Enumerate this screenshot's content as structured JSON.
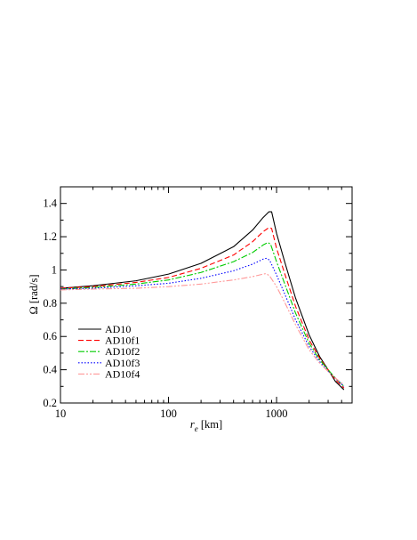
{
  "chart_data": {
    "type": "line",
    "xlabel": "r",
    "xlabel_sub": "e",
    "xlabel_unit": " [km]",
    "ylabel": "Ω [rad/s]",
    "xscale": "log",
    "xlim": [
      10,
      5000
    ],
    "ylim": [
      0.2,
      1.5
    ],
    "x_ticks": [
      10,
      100,
      1000
    ],
    "x_tick_labels": [
      "10",
      "100",
      "1000"
    ],
    "y_ticks": [
      0.2,
      0.4,
      0.6,
      0.8,
      1.0,
      1.2,
      1.4
    ],
    "y_tick_labels": [
      "0.2",
      "0.4",
      "0.6",
      "0.8",
      "1",
      "1.2",
      "1.4"
    ],
    "grid": false,
    "legend_position": "lower-left",
    "series": [
      {
        "name": "AD10",
        "color": "#000000",
        "dash": "",
        "points": [
          [
            10,
            0.89
          ],
          [
            20,
            0.905
          ],
          [
            50,
            0.935
          ],
          [
            100,
            0.975
          ],
          [
            200,
            1.04
          ],
          [
            400,
            1.14
          ],
          [
            600,
            1.24
          ],
          [
            750,
            1.315
          ],
          [
            850,
            1.35
          ],
          [
            900,
            1.35
          ],
          [
            1000,
            1.22
          ],
          [
            1200,
            1.04
          ],
          [
            1500,
            0.83
          ],
          [
            2000,
            0.61
          ],
          [
            2500,
            0.48
          ],
          [
            3000,
            0.4
          ],
          [
            3500,
            0.33
          ],
          [
            4200,
            0.28
          ]
        ]
      },
      {
        "name": "AD10f1",
        "color": "#ff0000",
        "dash": "6,3",
        "points": [
          [
            10,
            0.89
          ],
          [
            20,
            0.9
          ],
          [
            50,
            0.925
          ],
          [
            100,
            0.955
          ],
          [
            200,
            1.01
          ],
          [
            400,
            1.09
          ],
          [
            600,
            1.17
          ],
          [
            750,
            1.23
          ],
          [
            850,
            1.255
          ],
          [
            900,
            1.25
          ],
          [
            1000,
            1.13
          ],
          [
            1200,
            0.97
          ],
          [
            1500,
            0.78
          ],
          [
            2000,
            0.58
          ],
          [
            2500,
            0.47
          ],
          [
            3000,
            0.4
          ],
          [
            3500,
            0.34
          ],
          [
            4200,
            0.29
          ]
        ]
      },
      {
        "name": "AD10f2",
        "color": "#00cc00",
        "dash": "7,2,2,2",
        "points": [
          [
            10,
            0.885
          ],
          [
            20,
            0.895
          ],
          [
            50,
            0.915
          ],
          [
            100,
            0.94
          ],
          [
            200,
            0.985
          ],
          [
            400,
            1.05
          ],
          [
            600,
            1.105
          ],
          [
            750,
            1.15
          ],
          [
            830,
            1.165
          ],
          [
            880,
            1.155
          ],
          [
            1000,
            1.05
          ],
          [
            1200,
            0.91
          ],
          [
            1500,
            0.74
          ],
          [
            2000,
            0.56
          ],
          [
            2500,
            0.46
          ],
          [
            3000,
            0.4
          ],
          [
            3500,
            0.35
          ],
          [
            4200,
            0.3
          ]
        ]
      },
      {
        "name": "AD10f3",
        "color": "#0000ff",
        "dash": "1.5,2",
        "points": [
          [
            10,
            0.885
          ],
          [
            20,
            0.89
          ],
          [
            50,
            0.905
          ],
          [
            100,
            0.92
          ],
          [
            200,
            0.95
          ],
          [
            400,
            0.995
          ],
          [
            600,
            1.035
          ],
          [
            750,
            1.065
          ],
          [
            800,
            1.07
          ],
          [
            860,
            1.06
          ],
          [
            1000,
            0.97
          ],
          [
            1200,
            0.85
          ],
          [
            1500,
            0.7
          ],
          [
            2000,
            0.54
          ],
          [
            2500,
            0.45
          ],
          [
            3000,
            0.39
          ],
          [
            3500,
            0.35
          ],
          [
            4200,
            0.3
          ]
        ]
      },
      {
        "name": "AD10f4",
        "color": "#ff9999",
        "dash": "7,2,2,2,2,2",
        "points": [
          [
            10,
            0.88
          ],
          [
            20,
            0.885
          ],
          [
            50,
            0.89
          ],
          [
            100,
            0.9
          ],
          [
            200,
            0.915
          ],
          [
            400,
            0.94
          ],
          [
            600,
            0.96
          ],
          [
            750,
            0.975
          ],
          [
            800,
            0.978
          ],
          [
            860,
            0.965
          ],
          [
            1000,
            0.9
          ],
          [
            1200,
            0.8
          ],
          [
            1500,
            0.67
          ],
          [
            2000,
            0.52
          ],
          [
            2500,
            0.44
          ],
          [
            3000,
            0.39
          ],
          [
            3500,
            0.35
          ],
          [
            4200,
            0.31
          ]
        ]
      }
    ]
  }
}
